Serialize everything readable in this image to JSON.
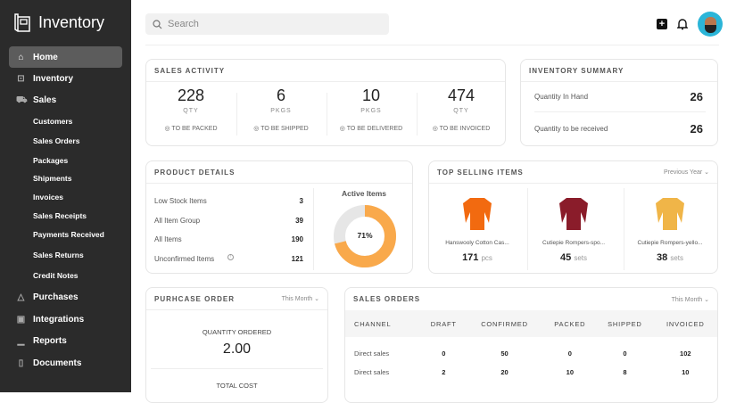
{
  "app": {
    "title": "Inventory"
  },
  "sidebar": {
    "items": [
      {
        "label": "Home",
        "icon": "home-icon",
        "active": true
      },
      {
        "label": "Inventory",
        "icon": "inventory-icon"
      },
      {
        "label": "Sales",
        "icon": "cart-icon"
      },
      {
        "label": "Customers",
        "sub": true
      },
      {
        "label": "Sales Orders",
        "sub": true
      },
      {
        "label": "Packages",
        "sub": true
      },
      {
        "label": "Shipments",
        "sub": true
      },
      {
        "label": "Invoices",
        "sub": true
      },
      {
        "label": "Sales Receipts",
        "sub": true
      },
      {
        "label": "Payments Received",
        "sub": true
      },
      {
        "label": "Sales Returns",
        "sub": true
      },
      {
        "label": "Credit Notes",
        "sub": true
      },
      {
        "label": "Purchases",
        "icon": "bag-icon"
      },
      {
        "label": "Integrations",
        "icon": "integrations-icon"
      },
      {
        "label": "Reports",
        "icon": "reports-icon"
      },
      {
        "label": "Documents",
        "icon": "document-icon"
      }
    ]
  },
  "search": {
    "placeholder": "Search"
  },
  "sales_activity": {
    "title": "SALES ACTIVITY",
    "stats": [
      {
        "value": "228",
        "unit": "QTY",
        "label": "TO BE PACKED"
      },
      {
        "value": "6",
        "unit": "PKGS",
        "label": "TO BE SHIPPED"
      },
      {
        "value": "10",
        "unit": "PKGS",
        "label": "TO BE DELIVERED"
      },
      {
        "value": "474",
        "unit": "QTY",
        "label": "TO BE INVOICED"
      }
    ]
  },
  "inventory_summary": {
    "title": "INVENTORY SUMMARY",
    "rows": [
      {
        "label": "Quantity In Hand",
        "value": "26"
      },
      {
        "label": "Quantity to be received",
        "value": "26"
      }
    ]
  },
  "product_details": {
    "title": "PRODUCT DETAILS",
    "rows": [
      {
        "label": "Low Stock Items",
        "value": "3"
      },
      {
        "label": "All Item Group",
        "value": "39"
      },
      {
        "label": "All Items",
        "value": "190"
      },
      {
        "label": "Unconfirmed Items",
        "value": "121"
      }
    ],
    "chart_title": "Active Items",
    "active_percent": 71,
    "active_label": "71%",
    "colors": {
      "active": "#f9a94b",
      "rest": "#e6e6e6"
    }
  },
  "top_selling": {
    "title": "TOP SELLING ITEMS",
    "period": "Previous Year",
    "items": [
      {
        "name": "Hanswooly Cotton Cas...",
        "qty": "171",
        "unit": "pcs",
        "color": "#f26a10"
      },
      {
        "name": "Cutiepie Rompers-spo...",
        "qty": "45",
        "unit": "sets",
        "color": "#8a1c2a"
      },
      {
        "name": "Cutiepie Rompers-yello...",
        "qty": "38",
        "unit": "sets",
        "color": "#f0b548"
      }
    ]
  },
  "purchase_order": {
    "title": "PURHCASE ORDER",
    "period": "This Month",
    "qty_label": "QUANTITY ORDERED",
    "qty_value": "2.00",
    "cost_label": "TOTAL COST"
  },
  "sales_orders": {
    "title": "SALES ORDERS",
    "period": "This Month",
    "columns": [
      "CHANNEL",
      "DRAFT",
      "CONFIRMED",
      "PACKED",
      "SHIPPED",
      "INVOICED"
    ],
    "rows": [
      [
        "Direct sales",
        "0",
        "50",
        "0",
        "0",
        "102"
      ],
      [
        "Direct sales",
        "2",
        "20",
        "10",
        "8",
        "10"
      ]
    ]
  }
}
